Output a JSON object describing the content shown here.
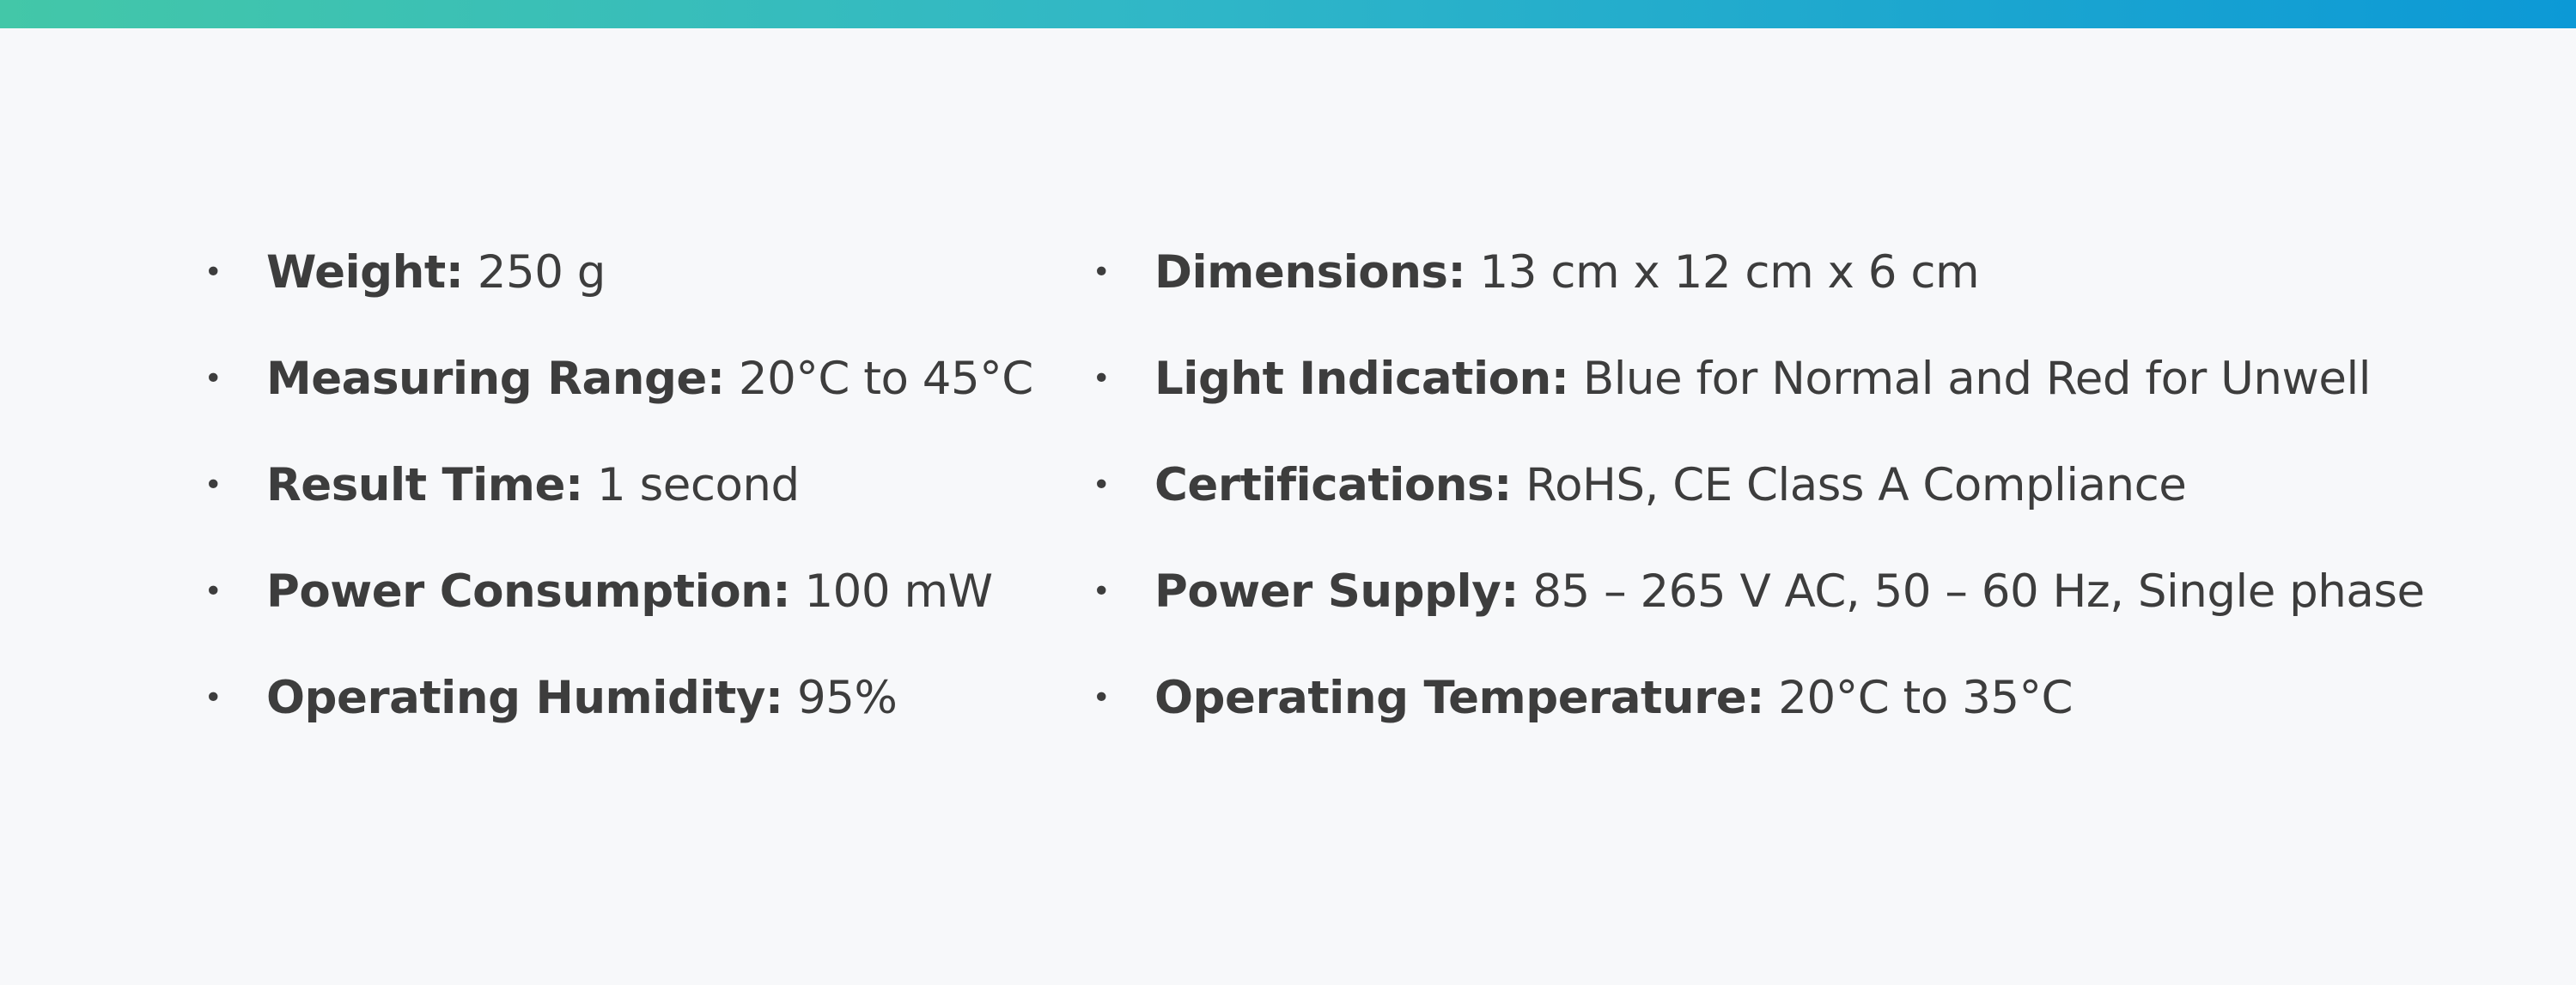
{
  "accent": {
    "gradient_start": "#43c7a8",
    "gradient_end": "#0c99d6"
  },
  "specs": {
    "left": [
      {
        "label": "Weight:",
        "value": "250 g"
      },
      {
        "label": "Measuring Range:",
        "value": "20°C to 45°C"
      },
      {
        "label": "Result Time:",
        "value": "1 second"
      },
      {
        "label": "Power Consumption:",
        "value": "100 mW"
      },
      {
        "label": "Operating Humidity:",
        "value": "95%"
      }
    ],
    "right": [
      {
        "label": "Dimensions:",
        "value": "13 cm x 12 cm x 6 cm"
      },
      {
        "label": "Light Indication:",
        "value": "Blue for Normal and Red for Unwell"
      },
      {
        "label": "Certifications:",
        "value": "RoHS, CE Class A Compliance"
      },
      {
        "label": "Power Supply:",
        "value": "85 – 265 V AC, 50 – 60 Hz, Single phase"
      },
      {
        "label": "Operating Temperature:",
        "value": "20°C to 35°C"
      }
    ]
  }
}
